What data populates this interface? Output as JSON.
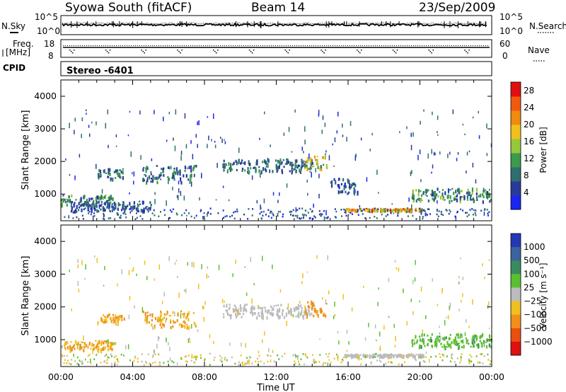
{
  "header": {
    "title": "Syowa South (fitACF)",
    "beam": "Beam 14",
    "date": "23/Sep/2009"
  },
  "noise_panel": {
    "left_label": "N.Sky",
    "left_ticks": [
      "10^5",
      "10^0"
    ],
    "right_label": "N.Search",
    "right_ticks": [
      "10^5",
      "10^0"
    ]
  },
  "freq_panel": {
    "left_label_1": "Freq.",
    "left_label_2": "[MHz]",
    "left_ticks": [
      "18",
      "8"
    ],
    "right_label": "Nave",
    "right_ticks": [
      "60",
      "0"
    ]
  },
  "cpid": {
    "label": "CPID",
    "value": "Stereo -6401"
  },
  "colors": {
    "power_scale": [
      "#1b25f0",
      "#2a3a9a",
      "#2f6e6e",
      "#3c9a4a",
      "#97c83c",
      "#f0c020",
      "#f08a10",
      "#ef5a10",
      "#e01010"
    ],
    "velocity_scale": [
      "#2437b5",
      "#3c62a0",
      "#3a8a60",
      "#5ac030",
      "#bcbcbc",
      "#f0c020",
      "#f0901a",
      "#e85010",
      "#e01010"
    ],
    "grid_axis": "#000000"
  },
  "chart_data": [
    {
      "type": "heatmap",
      "title": "",
      "xlabel": "Time UT",
      "ylabel": "Slant Range [km]",
      "x_ticks": [
        "00:00",
        "04:00",
        "08:00",
        "12:00",
        "16:00",
        "20:00",
        "00:00"
      ],
      "y_ticks": [
        "1000",
        "2000",
        "3000",
        "4000"
      ],
      "xlim": [
        0,
        24
      ],
      "ylim": [
        180,
        4500
      ],
      "colorbar": {
        "label": "Power [dB]",
        "ticks": [
          "4",
          "8",
          "12",
          "16",
          "20",
          "24",
          "28"
        ],
        "range": [
          0,
          30
        ]
      },
      "echo_bands": [
        {
          "t": [
            0.0,
            3.0
          ],
          "range": [
            700,
            1000
          ],
          "value": 10
        },
        {
          "t": [
            2.0,
            3.5
          ],
          "range": [
            1500,
            1800
          ],
          "value": 8
        },
        {
          "t": [
            4.5,
            7.5
          ],
          "range": [
            1400,
            1900
          ],
          "value": 8
        },
        {
          "t": [
            9.0,
            14.0
          ],
          "range": [
            1700,
            2100
          ],
          "value": 8
        },
        {
          "t": [
            13.5,
            14.8
          ],
          "range": [
            1750,
            2200
          ],
          "value": 16
        },
        {
          "t": [
            15.0,
            16.5
          ],
          "range": [
            1000,
            1500
          ],
          "value": 6
        },
        {
          "t": [
            15.8,
            20.2
          ],
          "range": [
            520,
            580
          ],
          "value": 20
        },
        {
          "t": [
            19.5,
            24.0
          ],
          "range": [
            800,
            1200
          ],
          "value": 10
        },
        {
          "t": [
            0.5,
            5.0
          ],
          "range": [
            500,
            800
          ],
          "value": 6
        }
      ]
    },
    {
      "type": "heatmap",
      "title": "",
      "xlabel": "Time UT",
      "ylabel": "Slant Range [km]",
      "x_ticks": [
        "00:00",
        "04:00",
        "08:00",
        "12:00",
        "16:00",
        "20:00",
        "00:00"
      ],
      "y_ticks": [
        "1000",
        "2000",
        "3000",
        "4000"
      ],
      "xlim": [
        0,
        24
      ],
      "ylim": [
        180,
        4500
      ],
      "colorbar": {
        "label": "Velocity [m s⁻¹]",
        "ticks": [
          "1000",
          "500",
          "100",
          "25",
          "−25",
          "−100",
          "−500",
          "−1000"
        ],
        "range": [
          -1000,
          1000
        ]
      },
      "echo_bands": [
        {
          "t": [
            0.0,
            3.0
          ],
          "range": [
            700,
            1000
          ],
          "value": -100
        },
        {
          "t": [
            2.0,
            3.5
          ],
          "range": [
            1500,
            1800
          ],
          "value": -100
        },
        {
          "t": [
            4.5,
            7.5
          ],
          "range": [
            1400,
            1900
          ],
          "value": -100
        },
        {
          "t": [
            9.0,
            14.0
          ],
          "range": [
            1700,
            2100
          ],
          "value": 0
        },
        {
          "t": [
            13.5,
            14.8
          ],
          "range": [
            1750,
            2200
          ],
          "value": -150
        },
        {
          "t": [
            15.8,
            20.2
          ],
          "range": [
            520,
            580
          ],
          "value": 0
        },
        {
          "t": [
            19.5,
            24.0
          ],
          "range": [
            800,
            1200
          ],
          "value": 80
        }
      ]
    }
  ]
}
